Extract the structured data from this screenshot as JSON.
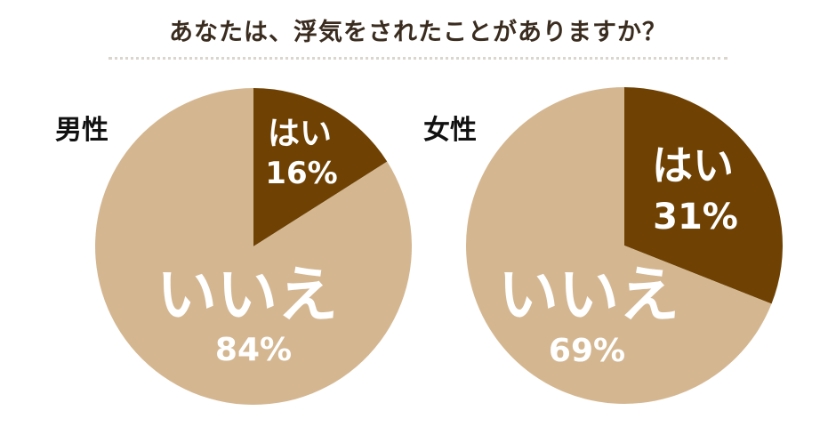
{
  "title": "あなたは、浮気をされたことがありますか？",
  "colors": {
    "yes": "#6f4204",
    "no": "#d4b791",
    "label": "#ffffff",
    "title": "#3a2c1f"
  },
  "chart_data": [
    {
      "type": "pie",
      "title": "男性",
      "slices": [
        {
          "label": "はい",
          "value": 16,
          "display": "16%"
        },
        {
          "label": "いいえ",
          "value": 84,
          "display": "84%"
        }
      ]
    },
    {
      "type": "pie",
      "title": "女性",
      "slices": [
        {
          "label": "はい",
          "value": 31,
          "display": "31%"
        },
        {
          "label": "いいえ",
          "value": 69,
          "display": "69%"
        }
      ]
    }
  ]
}
